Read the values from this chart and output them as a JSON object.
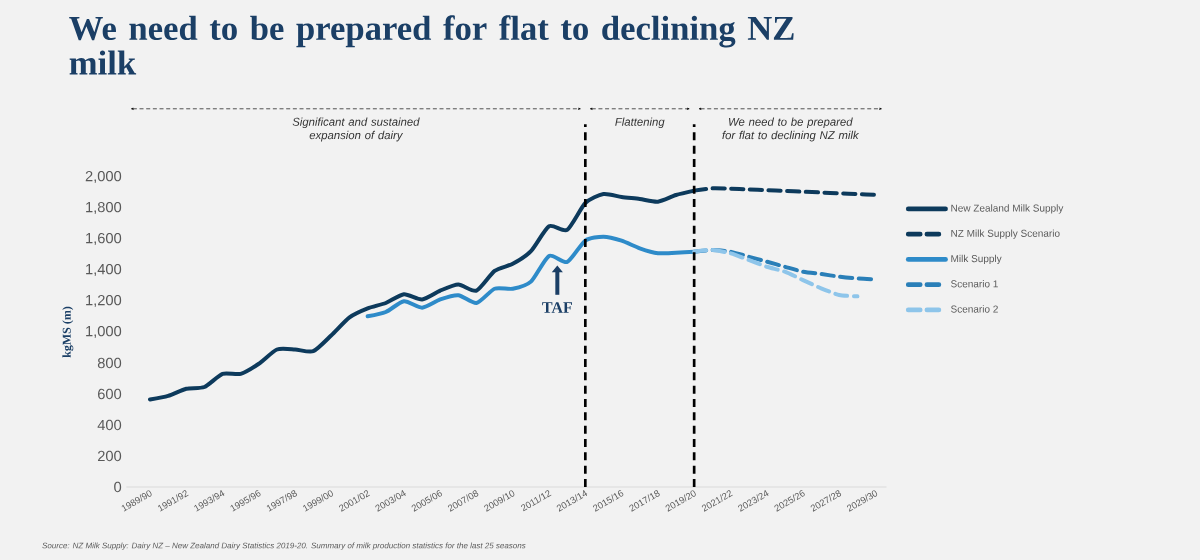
{
  "chart_data": {
    "type": "line",
    "title": "We need to be prepared for flat to declining NZ milk",
    "ylabel": "kgMS (m)",
    "categories": [
      "1989/90",
      null,
      "1991/92",
      null,
      "1993/94",
      null,
      "1995/96",
      null,
      "1997/98",
      null,
      "1999/00",
      null,
      "2001/02",
      null,
      "2003/04",
      null,
      "2005/06",
      null,
      "2007/08",
      null,
      "2009/10",
      null,
      "2011/12",
      null,
      "2013/14",
      null,
      "2015/16",
      null,
      "2017/18",
      null,
      "2019/20",
      null,
      "2021/22",
      null,
      "2023/24",
      null,
      "2025/26",
      null,
      "2027/28",
      null,
      "2029/30"
    ],
    "series": [
      {
        "name": "New Zealand Milk Supply",
        "color": "#0d3a5c",
        "line_style": "solid",
        "values": [
          565,
          588,
          634,
          645,
          730,
          730,
          795,
          887,
          887,
          876,
          979,
          1094,
          1152,
          1187,
          1244,
          1210,
          1267,
          1306,
          1267,
          1394,
          1440,
          1521,
          1682,
          1659,
          1832,
          1890,
          1871,
          1858,
          1841,
          1884,
          1912,
          null,
          null,
          null,
          null,
          null,
          null,
          null,
          null,
          null,
          null
        ]
      },
      {
        "name": "NZ Milk Supply Scenario",
        "color": "#0d3a5c",
        "line_style": "dashed",
        "values": [
          null,
          null,
          null,
          null,
          null,
          null,
          null,
          null,
          null,
          null,
          null,
          null,
          null,
          null,
          null,
          null,
          null,
          null,
          null,
          null,
          null,
          null,
          null,
          null,
          null,
          null,
          null,
          null,
          null,
          null,
          1912,
          1927,
          1925,
          1920,
          1915,
          1910,
          1905,
          1900,
          1895,
          1890,
          1885
        ]
      },
      {
        "name": "Milk Supply",
        "color": "#2e8bc9",
        "line_style": "solid",
        "values": [
          null,
          null,
          null,
          null,
          null,
          null,
          null,
          null,
          null,
          null,
          null,
          null,
          1101,
          1129,
          1198,
          1157,
          1210,
          1237,
          1187,
          1279,
          1279,
          1325,
          1491,
          1452,
          1590,
          1615,
          1589,
          1540,
          1508,
          1512,
          1518,
          null,
          null,
          null,
          null,
          null,
          null,
          null,
          null,
          null,
          null
        ]
      },
      {
        "name": "Scenario 1",
        "color": "#2a7fb8",
        "line_style": "dashed",
        "values": [
          null,
          null,
          null,
          null,
          null,
          null,
          null,
          null,
          null,
          null,
          null,
          null,
          null,
          null,
          null,
          null,
          null,
          null,
          null,
          null,
          null,
          null,
          null,
          null,
          null,
          null,
          null,
          null,
          null,
          null,
          1518,
          1529,
          1518,
          1486,
          1454,
          1421,
          1389,
          1374,
          1357,
          1345,
          1340
        ]
      },
      {
        "name": "Scenario 2",
        "color": "#8ec5ea",
        "line_style": "dashed",
        "values": [
          null,
          null,
          null,
          null,
          null,
          null,
          null,
          null,
          null,
          null,
          null,
          null,
          null,
          null,
          null,
          null,
          null,
          null,
          null,
          null,
          null,
          null,
          null,
          null,
          null,
          null,
          null,
          null,
          null,
          null,
          1518,
          1529,
          1508,
          1465,
          1421,
          1389,
          1335,
          1282,
          1239,
          1230,
          null
        ]
      }
    ],
    "ylim": [
      0,
      2000
    ],
    "yticks": [
      0,
      200,
      400,
      600,
      800,
      {
        "value": 1000,
        "label": "1,000"
      },
      {
        "value": 1200,
        "label": "1,200"
      },
      {
        "value": 1400,
        "label": "1,400"
      },
      {
        "value": 1600,
        "label": "1,600"
      },
      {
        "value": 1800,
        "label": "1,800"
      },
      {
        "value": 2000,
        "label": "2,000"
      }
    ],
    "ref_lines": [
      {
        "axis": "x",
        "value": "2013/14",
        "color": "#000000",
        "line_style": "dashed"
      },
      {
        "axis": "x",
        "value": "2019/20",
        "color": "#000000",
        "line_style": "dashed"
      }
    ],
    "annotations": [
      "Significant and sustained expansion of dairy",
      "Flattening",
      "We need to be prepared for flat to declining NZ milk",
      "TAF",
      "Source: NZ Milk Supply: Dairy NZ – New Zealand Dairy Statistics 2019-20. Summary of milk production statistics for the last 25 seasons"
    ],
    "legend": "right",
    "grid": false
  }
}
